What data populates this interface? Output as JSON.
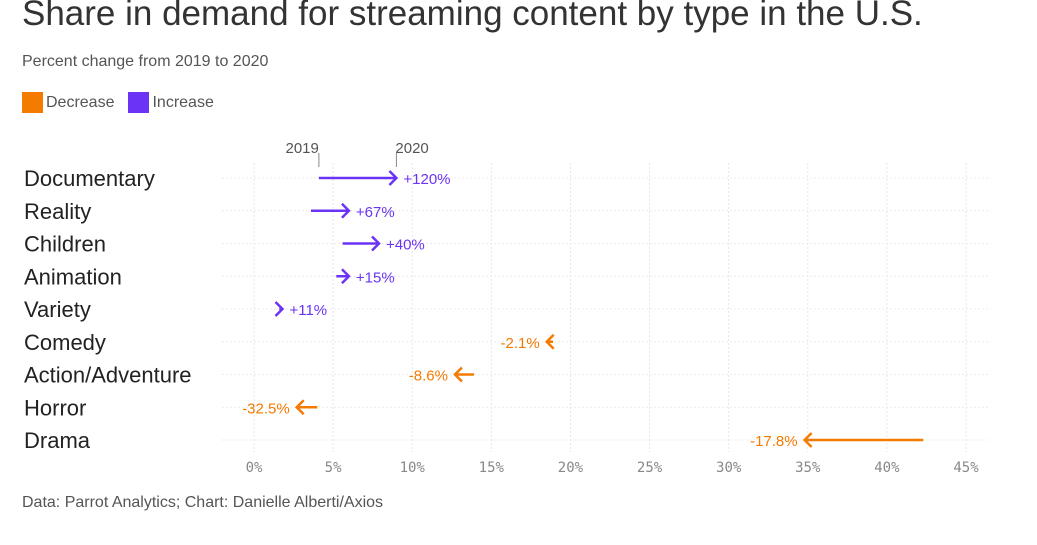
{
  "title": "Share in demand for streaming content by type in the U.S.",
  "subtitle": "Percent change from 2019 to 2020",
  "legend": {
    "decrease_label": "Decrease",
    "increase_label": "Increase",
    "decrease_color": "#f47a00",
    "increase_color": "#6b33f5"
  },
  "source": "Data: Parrot Analytics; Chart: Danielle Alberti/Axios",
  "chart_data": {
    "type": "arrow",
    "start_label": "2019",
    "end_label": "2020",
    "xlim": [
      0,
      45
    ],
    "x_ticks": [
      0,
      5,
      10,
      15,
      20,
      25,
      30,
      35,
      40,
      45
    ],
    "x_tick_labels": [
      "0%",
      "5%",
      "10%",
      "15%",
      "20%",
      "25%",
      "30%",
      "35%",
      "40%",
      "45%"
    ],
    "grid": true,
    "categories": [
      "Documentary",
      "Reality",
      "Children",
      "Animation",
      "Variety",
      "Comedy",
      "Action/Adventure",
      "Horror",
      "Drama"
    ],
    "series": [
      {
        "name": "2019",
        "values": [
          4.1,
          3.6,
          5.6,
          5.2,
          1.6,
          18.9,
          13.9,
          4.0,
          42.3
        ]
      },
      {
        "name": "2020",
        "values": [
          9.0,
          6.0,
          7.9,
          6.0,
          1.8,
          18.5,
          12.7,
          2.7,
          34.8
        ]
      }
    ],
    "change_labels": [
      "+120%",
      "+67%",
      "+40%",
      "+15%",
      "+11%",
      "-2.1%",
      "-8.6%",
      "-32.5%",
      "-17.8%"
    ]
  }
}
